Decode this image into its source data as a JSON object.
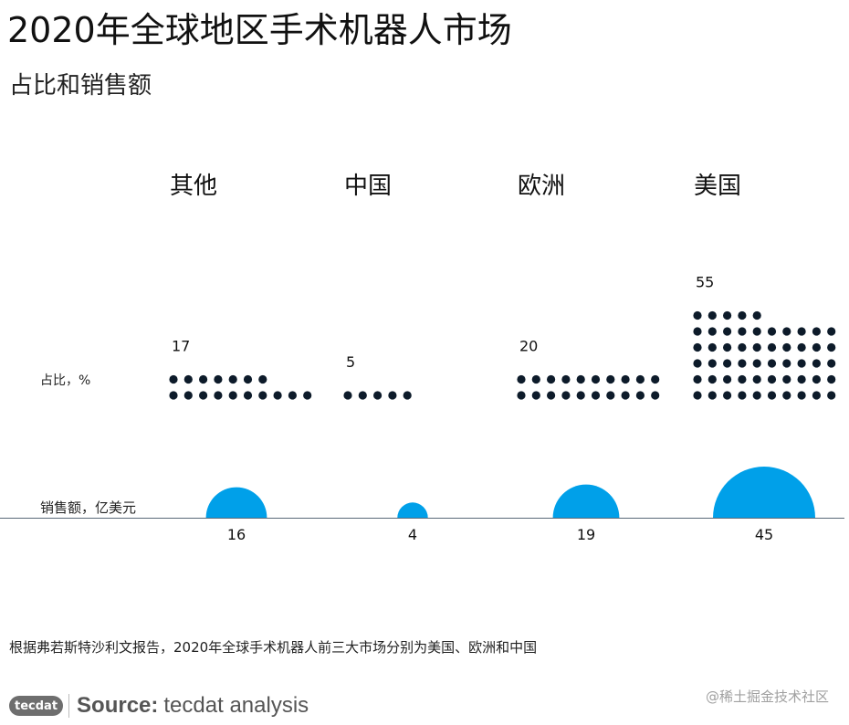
{
  "title": "2020年全球地区手术机器人市场",
  "subtitle": "占比和销售额",
  "chart_data": {
    "type": "dot-matrix and semicircle",
    "regions": [
      "其他",
      "中国",
      "欧洲",
      "美国"
    ],
    "share_label": "占比，%",
    "share_values": [
      17,
      5,
      20,
      55
    ],
    "sales_label": "销售额，亿美元",
    "sales_values": [
      16,
      4,
      19,
      45
    ],
    "colors": {
      "dots": "#0d1b2a",
      "bubble": "#00a0e9",
      "baseline": "#5a6978"
    }
  },
  "footnote": "根据弗若斯特沙利文报告，2020年全球手术机器人前三大市场分别为美国、欧洲和中国",
  "source": {
    "logo": "tecdat",
    "label": "Source:",
    "text": "tecdat analysis"
  },
  "watermark": "@稀土掘金技术社区"
}
